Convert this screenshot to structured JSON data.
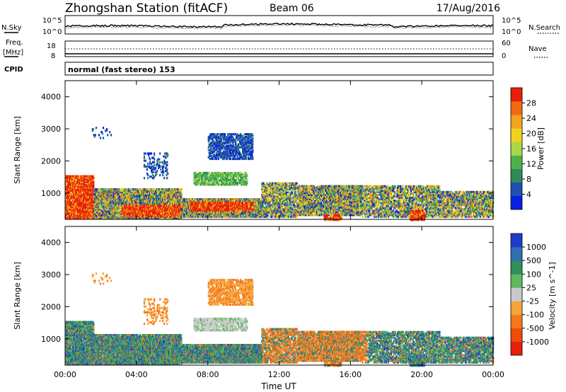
{
  "header": {
    "station": "Zhongshan Station (fitACF)",
    "beam": "Beam 06",
    "date": "17/Aug/2016"
  },
  "strips": {
    "nsky_label": "N.Sky",
    "nsearch_label": "N.Search",
    "noise_ticks_left": [
      "10^5",
      "10^0"
    ],
    "noise_ticks_right": [
      "10^5",
      "10^0"
    ],
    "freq_label_line1": "Freq.",
    "freq_label_line2": "[MHz]",
    "freq_ticks": [
      "18",
      "8"
    ],
    "nave_label": "Nave",
    "nave_ticks": [
      "60",
      "0"
    ],
    "cpid_label": "CPID",
    "cpid_text": "normal (fast stereo) 153"
  },
  "colors": {
    "power": [
      "#0a1ee6",
      "#1f4fb0",
      "#2f8a5a",
      "#4fb04a",
      "#a8d84a",
      "#f2d21e",
      "#f5a21e",
      "#f06a14",
      "#e61e0a"
    ],
    "velocity": [
      "#e61e0a",
      "#f04a0a",
      "#f5781e",
      "#f5a53a",
      "#c8c8c8",
      "#5fb85f",
      "#2f8f5a",
      "#2f6fb0",
      "#1e3ccc"
    ]
  },
  "chart_data": [
    {
      "type": "heatmap",
      "panel": "power",
      "xlabel": "",
      "ylabel": "Slant Range [km]",
      "xlim": [
        0,
        24
      ],
      "ylim": [
        180,
        4500
      ],
      "y_ticks": [
        "1000",
        "2000",
        "3000",
        "4000"
      ],
      "colorbar": {
        "label": "Power [dB]",
        "ticks": [
          "4",
          "8",
          "12",
          "16",
          "20",
          "24",
          "28"
        ],
        "range": [
          0,
          32
        ]
      }
    },
    {
      "type": "heatmap",
      "panel": "velocity",
      "xlabel": "Time UT",
      "ylabel": "Slant Range [km]",
      "xlim": [
        0,
        24
      ],
      "ylim": [
        180,
        4500
      ],
      "x_ticks": [
        "00:00",
        "04:00",
        "08:00",
        "12:00",
        "16:00",
        "20:00",
        "00:00"
      ],
      "y_ticks": [
        "1000",
        "2000",
        "3000",
        "4000"
      ],
      "colorbar": {
        "label": "Velocity [m s^-1]",
        "ticks": [
          "1000",
          "500",
          "100",
          "25",
          "-25",
          "-100",
          "-500",
          "-1000"
        ]
      }
    }
  ]
}
